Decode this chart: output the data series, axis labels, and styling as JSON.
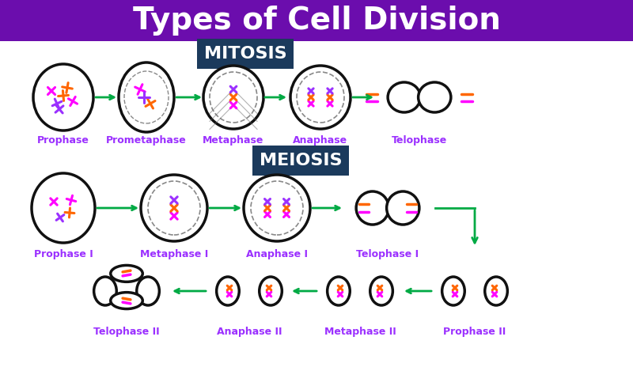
{
  "title": "Types of Cell Division",
  "title_bg": "#6B0DAD",
  "title_color": "#FFFFFF",
  "title_fontsize": 28,
  "bg_color": "#FFFFFF",
  "mitosis_label": "MITOSIS",
  "meiosis_label": "MEIOSIS",
  "section_label_bg": "#1B3A5C",
  "section_label_color": "#FFFFFF",
  "section_label_fontsize": 16,
  "phase_label_color": "#9B30FF",
  "phase_label_fontsize": 9,
  "arrow_color": "#00AA44",
  "cell_border_color": "#111111",
  "chromosome_colors": [
    "#FF00FF",
    "#FF6600",
    "#9B30FF"
  ],
  "spindle_color": "#555555",
  "mitosis_phases": [
    "Prophase",
    "Prometaphase",
    "Metaphase",
    "Anaphase",
    "Telophase"
  ],
  "meiosis_row1_phases": [
    "Prophase I",
    "Metaphase I",
    "Anaphase I",
    "Telophase I"
  ],
  "meiosis_row2_phases": [
    "Telophase II",
    "Anaphase II",
    "Metaphase II",
    "Prophase II"
  ]
}
